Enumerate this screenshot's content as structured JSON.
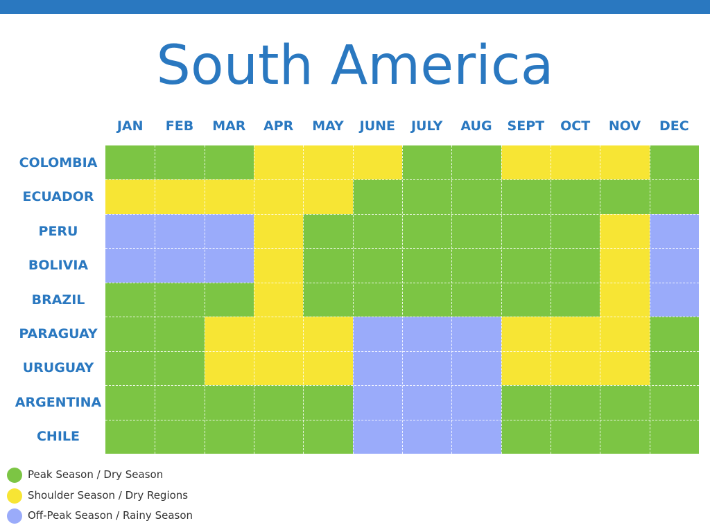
{
  "title": "South America",
  "colors": {
    "accent": "#2a78c0",
    "peak": "#7cc544",
    "shoulder": "#f7e534",
    "off_peak": "#9aabfa"
  },
  "legend": [
    {
      "label": "Peak Season / Dry Season",
      "key": "peak"
    },
    {
      "label": "Shoulder Season / Dry Regions",
      "key": "shoulder"
    },
    {
      "label": "Off-Peak Season / Rainy Season",
      "key": "off_peak"
    }
  ],
  "chart_data": {
    "type": "heatmap",
    "title": "South America",
    "columns": [
      "JAN",
      "FEB",
      "MAR",
      "APR",
      "MAY",
      "JUNE",
      "JULY",
      "AUG",
      "SEPT",
      "OCT",
      "NOV",
      "DEC"
    ],
    "rows": [
      "COLOMBIA",
      "ECUADOR",
      "PERU",
      "BOLIVIA",
      "BRAZIL",
      "PARAGUAY",
      "URUGUAY",
      "ARGENTINA",
      "CHILE"
    ],
    "values": [
      [
        "peak",
        "peak",
        "peak",
        "shoulder",
        "shoulder",
        "shoulder",
        "peak",
        "peak",
        "shoulder",
        "shoulder",
        "shoulder",
        "peak"
      ],
      [
        "shoulder",
        "shoulder",
        "shoulder",
        "shoulder",
        "shoulder",
        "peak",
        "peak",
        "peak",
        "peak",
        "peak",
        "peak",
        "peak"
      ],
      [
        "off_peak",
        "off_peak",
        "off_peak",
        "shoulder",
        "peak",
        "peak",
        "peak",
        "peak",
        "peak",
        "peak",
        "shoulder",
        "off_peak"
      ],
      [
        "off_peak",
        "off_peak",
        "off_peak",
        "shoulder",
        "peak",
        "peak",
        "peak",
        "peak",
        "peak",
        "peak",
        "shoulder",
        "off_peak"
      ],
      [
        "peak",
        "peak",
        "peak",
        "shoulder",
        "peak",
        "peak",
        "peak",
        "peak",
        "peak",
        "peak",
        "shoulder",
        "off_peak"
      ],
      [
        "peak",
        "peak",
        "shoulder",
        "shoulder",
        "shoulder",
        "off_peak",
        "off_peak",
        "off_peak",
        "shoulder",
        "shoulder",
        "shoulder",
        "peak"
      ],
      [
        "peak",
        "peak",
        "shoulder",
        "shoulder",
        "shoulder",
        "off_peak",
        "off_peak",
        "off_peak",
        "shoulder",
        "shoulder",
        "shoulder",
        "peak"
      ],
      [
        "peak",
        "peak",
        "peak",
        "peak",
        "peak",
        "off_peak",
        "off_peak",
        "off_peak",
        "peak",
        "peak",
        "peak",
        "peak"
      ],
      [
        "peak",
        "peak",
        "peak",
        "peak",
        "peak",
        "off_peak",
        "off_peak",
        "off_peak",
        "peak",
        "peak",
        "peak",
        "peak"
      ]
    ],
    "legend_placement": "bottom-left",
    "grid": true
  }
}
